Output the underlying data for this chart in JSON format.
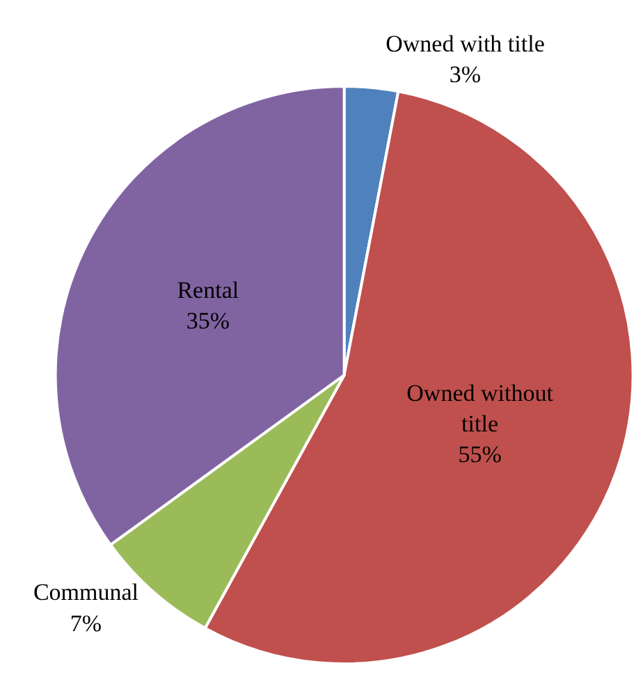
{
  "chart_data": {
    "type": "pie",
    "categories": [
      "Owned with title",
      "Owned without title",
      "Communal",
      "Rental"
    ],
    "values": [
      3,
      55,
      7,
      35
    ],
    "value_labels": [
      "3%",
      "55%",
      "7%",
      "35%"
    ],
    "colors": [
      "#4f81bd",
      "#c0504d",
      "#9bbb59",
      "#8064a2"
    ],
    "legend": false
  }
}
